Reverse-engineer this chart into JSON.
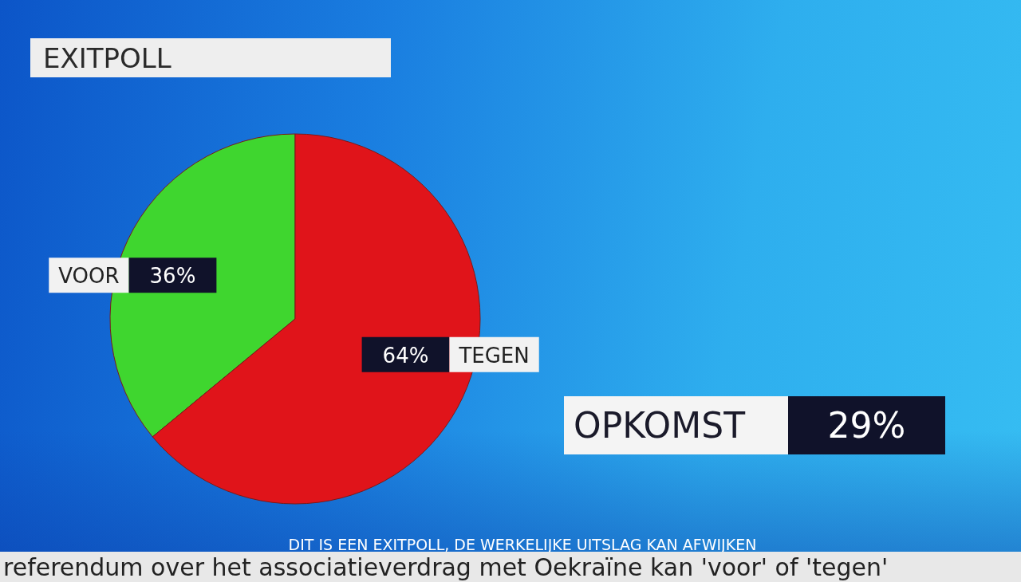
{
  "chart_data": {
    "type": "pie",
    "title": "EXITPOLL",
    "categories": [
      "VOOR",
      "TEGEN"
    ],
    "values": [
      36,
      64
    ],
    "colors": [
      "#3fd62f",
      "#e0141a"
    ],
    "value_labels": [
      "36%",
      "64%"
    ],
    "annotations": [
      "OPKOMST",
      "29%",
      "DIT IS EEN EXITPOLL, DE WERKELIJKE UITSLAG KAN AFWIJKEN",
      "referendum over het associatieverdrag met Oekraïne kan 'voor' of 'tegen'"
    ]
  }
}
